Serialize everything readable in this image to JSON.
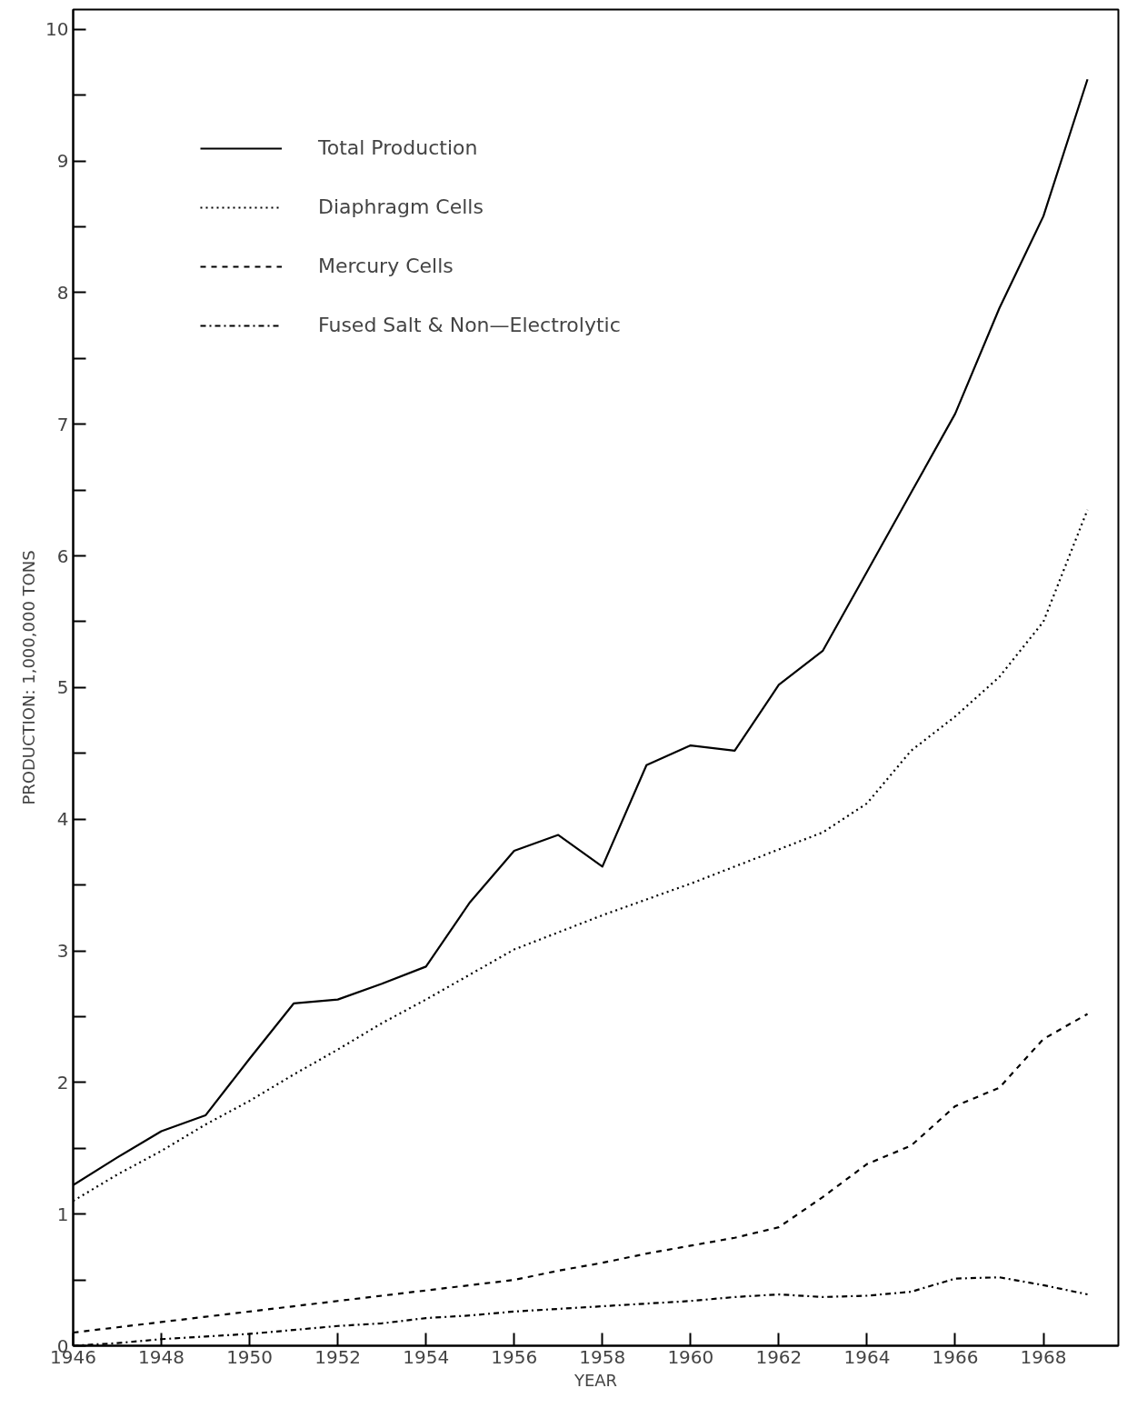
{
  "chart_data": {
    "type": "line",
    "xlabel": "YEAR",
    "ylabel": "PRODUCTION: 1,000,000 TONS",
    "x": [
      1946,
      1947,
      1948,
      1949,
      1950,
      1951,
      1952,
      1953,
      1954,
      1955,
      1956,
      1957,
      1958,
      1959,
      1960,
      1961,
      1962,
      1963,
      1964,
      1965,
      1966,
      1967,
      1968,
      1969
    ],
    "series": [
      {
        "name": "Total Production",
        "color": "#000000",
        "line_style": "solid",
        "values": [
          1.22,
          1.43,
          1.63,
          1.75,
          2.18,
          2.6,
          2.63,
          2.75,
          2.88,
          3.37,
          3.76,
          3.88,
          3.64,
          4.41,
          4.56,
          4.52,
          5.02,
          5.28,
          5.88,
          6.48,
          7.08,
          7.88,
          8.58,
          9.62
        ]
      },
      {
        "name": "Diaphragm Cells",
        "color": "#000000",
        "line_style": "dotted",
        "values": [
          1.1,
          1.3,
          1.48,
          1.68,
          1.86,
          2.06,
          2.25,
          2.45,
          2.63,
          2.82,
          3.01,
          3.14,
          3.27,
          3.39,
          3.51,
          3.64,
          3.77,
          3.9,
          4.12,
          4.52,
          4.78,
          5.08,
          5.5,
          6.35
        ]
      },
      {
        "name": "Mercury Cells",
        "color": "#000000",
        "line_style": "dashed",
        "values": [
          0.1,
          0.14,
          0.18,
          0.22,
          0.26,
          0.3,
          0.34,
          0.38,
          0.42,
          0.46,
          0.5,
          0.57,
          0.63,
          0.7,
          0.76,
          0.82,
          0.9,
          1.13,
          1.38,
          1.52,
          1.82,
          1.96,
          2.33,
          2.52
        ]
      },
      {
        "name": "Fused Salt & Non—Electrolytic",
        "color": "#000000",
        "line_style": "dashdot",
        "values": [
          0.0,
          0.02,
          0.05,
          0.07,
          0.09,
          0.12,
          0.15,
          0.17,
          0.21,
          0.23,
          0.26,
          0.28,
          0.3,
          0.32,
          0.34,
          0.37,
          0.39,
          0.37,
          0.38,
          0.41,
          0.51,
          0.52,
          0.46,
          0.39
        ]
      }
    ],
    "xlim": [
      1946,
      1969.7
    ],
    "ylim": [
      0,
      10.15
    ],
    "xticks": [
      1946,
      1948,
      1950,
      1952,
      1954,
      1956,
      1958,
      1960,
      1962,
      1964,
      1966,
      1968
    ],
    "yticks": [
      0,
      {
        "value": 0.5,
        "label": null
      },
      1,
      {
        "value": 1.5,
        "label": null
      },
      2,
      {
        "value": 2.5,
        "label": null
      },
      3,
      {
        "value": 3.5,
        "label": null
      },
      4,
      {
        "value": 4.5,
        "label": null
      },
      5,
      {
        "value": 5.5,
        "label": null
      },
      6,
      {
        "value": 6.5,
        "label": null
      },
      7,
      {
        "value": 7.5,
        "label": null
      },
      8,
      {
        "value": 8.5,
        "label": null
      },
      9,
      {
        "value": 9.5,
        "label": null
      },
      10
    ],
    "grid": false,
    "legend": "top left",
    "marker": "none"
  }
}
